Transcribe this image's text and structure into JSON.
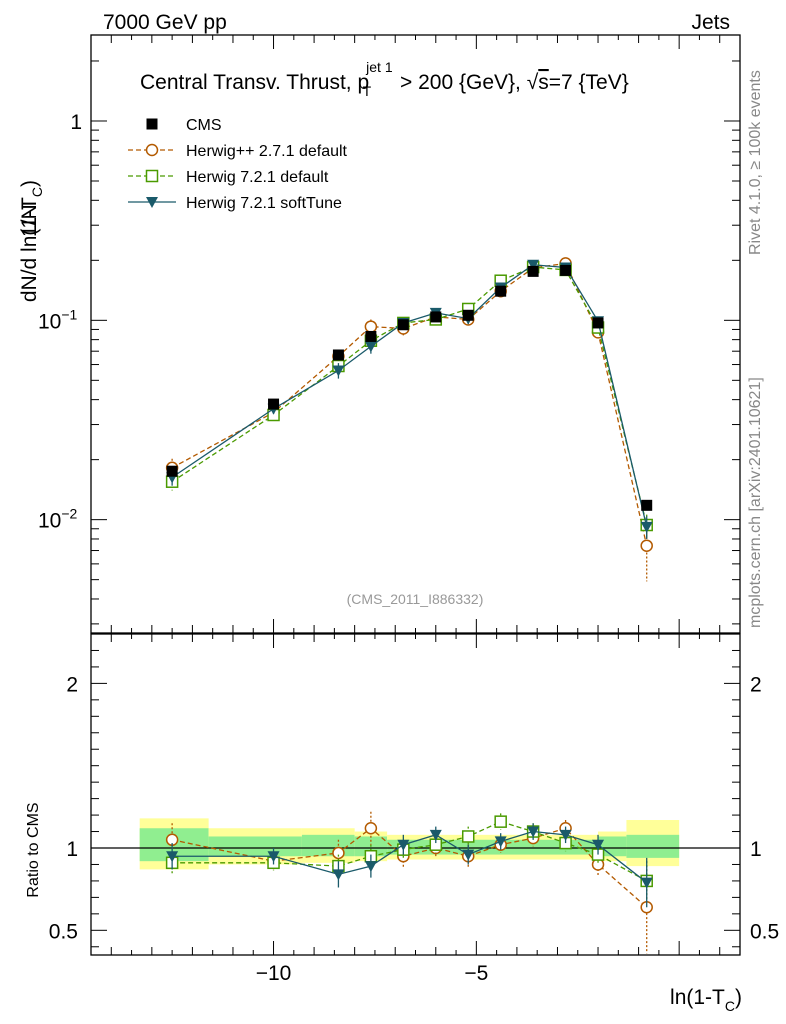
{
  "header": {
    "left": "7000 GeV pp",
    "right": "Jets"
  },
  "side": {
    "rivet": "Rivet 4.1.0, ≥ 100k events",
    "mcplots": "mcplots.cern.ch [arXiv:2401.10621]"
  },
  "chart_data": {
    "type": "line",
    "title_main": "Central Transv. Thrust, p",
    "title_sup": "jet 1",
    "title_sub": "T",
    "title_rest": " > 200 {GeV}, ",
    "title_sqrt": "√",
    "title_s": "s",
    "title_end": "=7 {TeV}",
    "analysis_label": "(CMS_2011_I886332)",
    "xlabel_main": "ln(1-T",
    "xlabel_sub": "C",
    "xlabel_end": ")",
    "ylabel_left": "1/N",
    "ylabel_main": "dN/d ln(1-T",
    "ylabel_sub": "C",
    "ylabel_end": ")",
    "ratio_ylabel": "Ratio to CMS",
    "xlim": [
      -14.5,
      1.5
    ],
    "ylim_log": [
      0.0027,
      2.7
    ],
    "ratio_ylim": [
      0.35,
      2.3
    ],
    "x_ticks": [
      {
        "value": -10,
        "label": "−10"
      },
      {
        "value": -5,
        "label": "−5"
      }
    ],
    "y_ticks": [
      {
        "value": 0.01,
        "base": "10",
        "exp": "−2"
      },
      {
        "value": 0.1,
        "base": "10",
        "exp": "−1"
      },
      {
        "value": 1,
        "base": "1",
        "exp": ""
      }
    ],
    "ratio_ticks": [
      {
        "value": 0.5,
        "label": "0.5"
      },
      {
        "value": 1,
        "label": "1"
      },
      {
        "value": 2,
        "label": "2"
      }
    ],
    "bands": [
      {
        "x0": -13.3,
        "x1": -11.6,
        "y0": 0.87,
        "y1": 1.18,
        "g0": 0.92,
        "g1": 1.12
      },
      {
        "x0": -11.6,
        "x1": -9.3,
        "y0": 0.9,
        "y1": 1.12,
        "g0": 0.95,
        "g1": 1.07
      },
      {
        "x0": -9.3,
        "x1": -8.0,
        "y0": 0.91,
        "y1": 1.12,
        "g0": 0.95,
        "g1": 1.08
      },
      {
        "x0": -8.0,
        "x1": -7.2,
        "y0": 0.92,
        "y1": 1.1,
        "g0": 0.95,
        "g1": 1.07
      },
      {
        "x0": -7.2,
        "x1": -2.0,
        "y0": 0.93,
        "y1": 1.08,
        "g0": 0.96,
        "g1": 1.05
      },
      {
        "x0": -2.0,
        "x1": -1.3,
        "y0": 0.92,
        "y1": 1.1,
        "g0": 0.95,
        "g1": 1.07
      },
      {
        "x0": -1.3,
        "x1": 0.0,
        "y0": 0.89,
        "y1": 1.17,
        "g0": 0.94,
        "g1": 1.08
      }
    ],
    "series": [
      {
        "name": "CMS",
        "color": "#000000",
        "marker": "square-filled",
        "dash": "none",
        "x": [
          -12.5,
          -10.0,
          -8.4,
          -7.6,
          -6.8,
          -6.0,
          -5.2,
          -4.4,
          -3.6,
          -2.8,
          -2.0,
          -0.8
        ],
        "y": [
          0.0175,
          0.038,
          0.067,
          0.083,
          0.095,
          0.104,
          0.106,
          0.14,
          0.176,
          0.178,
          0.097,
          0.0118
        ],
        "yerr": [
          0.001,
          0.0015,
          0.003,
          0.004,
          0.004,
          0.004,
          0.004,
          0.005,
          0.006,
          0.006,
          0.004,
          0.0006
        ]
      },
      {
        "name": "Herwig++ 2.7.1 default",
        "color": "#b35a00",
        "marker": "circle-open",
        "dash": "5,3",
        "x": [
          -12.5,
          -10.0,
          -8.4,
          -7.6,
          -6.8,
          -6.0,
          -5.2,
          -4.4,
          -3.6,
          -2.8,
          -2.0,
          -0.8
        ],
        "y": [
          0.0182,
          0.0345,
          0.066,
          0.093,
          0.091,
          0.104,
          0.101,
          0.14,
          0.183,
          0.193,
          0.087,
          0.0074
        ],
        "yerr": [
          0.002,
          0.002,
          0.005,
          0.008,
          0.007,
          0.006,
          0.007,
          0.007,
          0.008,
          0.008,
          0.006,
          0.0025
        ],
        "ratio": [
          1.05,
          0.92,
          0.97,
          1.12,
          0.95,
          1.0,
          0.95,
          1.02,
          1.06,
          1.12,
          0.9,
          0.64
        ],
        "ratio_err": [
          0.1,
          0.05,
          0.08,
          0.1,
          0.07,
          0.06,
          0.07,
          0.05,
          0.05,
          0.05,
          0.07,
          0.28
        ]
      },
      {
        "name": "Herwig 7.2.1 default",
        "color": "#4a9a00",
        "marker": "square-open",
        "dash": "5,3",
        "x": [
          -12.5,
          -10.0,
          -8.4,
          -7.6,
          -6.8,
          -6.0,
          -5.2,
          -4.4,
          -3.6,
          -2.8,
          -2.0,
          -0.8
        ],
        "y": [
          0.0155,
          0.0335,
          0.059,
          0.079,
          0.097,
          0.101,
          0.114,
          0.158,
          0.185,
          0.179,
          0.092,
          0.0094
        ],
        "yerr": [
          0.0015,
          0.002,
          0.004,
          0.006,
          0.006,
          0.005,
          0.006,
          0.007,
          0.008,
          0.007,
          0.005,
          0.0012
        ],
        "ratio": [
          0.91,
          0.91,
          0.89,
          0.95,
          0.99,
          1.02,
          1.07,
          1.16,
          1.1,
          1.03,
          0.96,
          0.8
        ],
        "ratio_err": [
          0.07,
          0.05,
          0.07,
          0.07,
          0.06,
          0.05,
          0.06,
          0.05,
          0.05,
          0.05,
          0.06,
          0.12
        ]
      },
      {
        "name": "Herwig 7.2.1 softTune",
        "color": "#1a5a6a",
        "marker": "triangle-down-filled",
        "dash": "none",
        "x": [
          -12.5,
          -10.0,
          -8.4,
          -7.6,
          -6.8,
          -6.0,
          -5.2,
          -4.4,
          -3.6,
          -2.8,
          -2.0,
          -0.8
        ],
        "y": [
          0.0163,
          0.036,
          0.056,
          0.074,
          0.097,
          0.109,
          0.102,
          0.146,
          0.19,
          0.184,
          0.099,
          0.0092
        ],
        "yerr": [
          0.0015,
          0.002,
          0.005,
          0.006,
          0.005,
          0.005,
          0.006,
          0.006,
          0.007,
          0.007,
          0.005,
          0.0012
        ],
        "ratio": [
          0.95,
          0.95,
          0.84,
          0.89,
          1.02,
          1.08,
          0.96,
          1.04,
          1.1,
          1.08,
          1.02,
          0.79
        ],
        "ratio_err": [
          0.08,
          0.05,
          0.08,
          0.07,
          0.06,
          0.05,
          0.06,
          0.05,
          0.05,
          0.05,
          0.06,
          0.15
        ]
      }
    ]
  }
}
